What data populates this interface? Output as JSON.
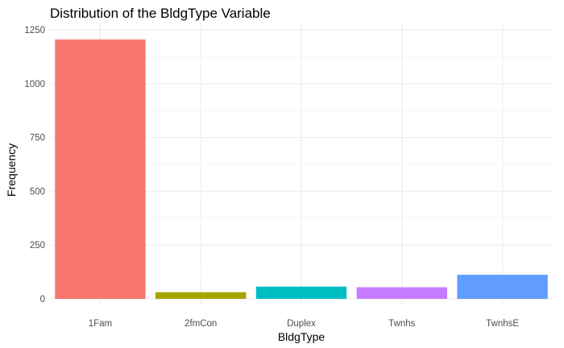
{
  "chart_data": {
    "type": "bar",
    "title": "Distribution of the BldgType Variable",
    "xlabel": "BldgType",
    "ylabel": "Frequency",
    "categories": [
      "1Fam",
      "2fmCon",
      "Duplex",
      "Twnhs",
      "TwnhsE"
    ],
    "values": [
      1205,
      31,
      57,
      54,
      112
    ],
    "colors": [
      "#F8766D",
      "#A3A500",
      "#00BFC4",
      "#C77CFF",
      "#619CFF"
    ],
    "ylim": [
      0,
      1250
    ],
    "yticks": [
      0,
      250,
      500,
      750,
      1000,
      1250
    ],
    "grid": true,
    "legend": "none"
  }
}
